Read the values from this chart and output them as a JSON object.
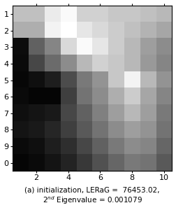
{
  "grid": [
    [
      0.75,
      0.75,
      0.92,
      0.98,
      0.82,
      0.82,
      0.78,
      0.78,
      0.75,
      0.72
    ],
    [
      0.68,
      0.68,
      0.95,
      1.0,
      0.9,
      0.85,
      0.8,
      0.75,
      0.7,
      0.65
    ],
    [
      0.05,
      0.38,
      0.52,
      0.85,
      0.98,
      0.9,
      0.8,
      0.72,
      0.62,
      0.55
    ],
    [
      0.04,
      0.28,
      0.42,
      0.55,
      0.72,
      0.82,
      0.78,
      0.72,
      0.6,
      0.52
    ],
    [
      0.03,
      0.06,
      0.12,
      0.3,
      0.48,
      0.58,
      0.78,
      0.95,
      0.72,
      0.58
    ],
    [
      0.04,
      0.02,
      0.02,
      0.25,
      0.45,
      0.55,
      0.68,
      0.8,
      0.65,
      0.52
    ],
    [
      0.06,
      0.08,
      0.1,
      0.28,
      0.38,
      0.5,
      0.62,
      0.72,
      0.62,
      0.48
    ],
    [
      0.08,
      0.1,
      0.15,
      0.25,
      0.35,
      0.45,
      0.55,
      0.62,
      0.58,
      0.45
    ],
    [
      0.04,
      0.06,
      0.12,
      0.18,
      0.28,
      0.38,
      0.48,
      0.55,
      0.52,
      0.4
    ],
    [
      0.02,
      0.04,
      0.08,
      0.14,
      0.22,
      0.32,
      0.4,
      0.48,
      0.45,
      0.35
    ]
  ],
  "cmap": "gray",
  "vmin": 0.0,
  "vmax": 1.0,
  "figsize": [
    2.52,
    3.0
  ],
  "dpi": 100,
  "title_text": "(a) initialization, LERaG =  76453.02,\n2$^{nd}$ Eigenvalue = 0.001079",
  "title_fontsize": 7.5,
  "tick_fontsize": 8
}
